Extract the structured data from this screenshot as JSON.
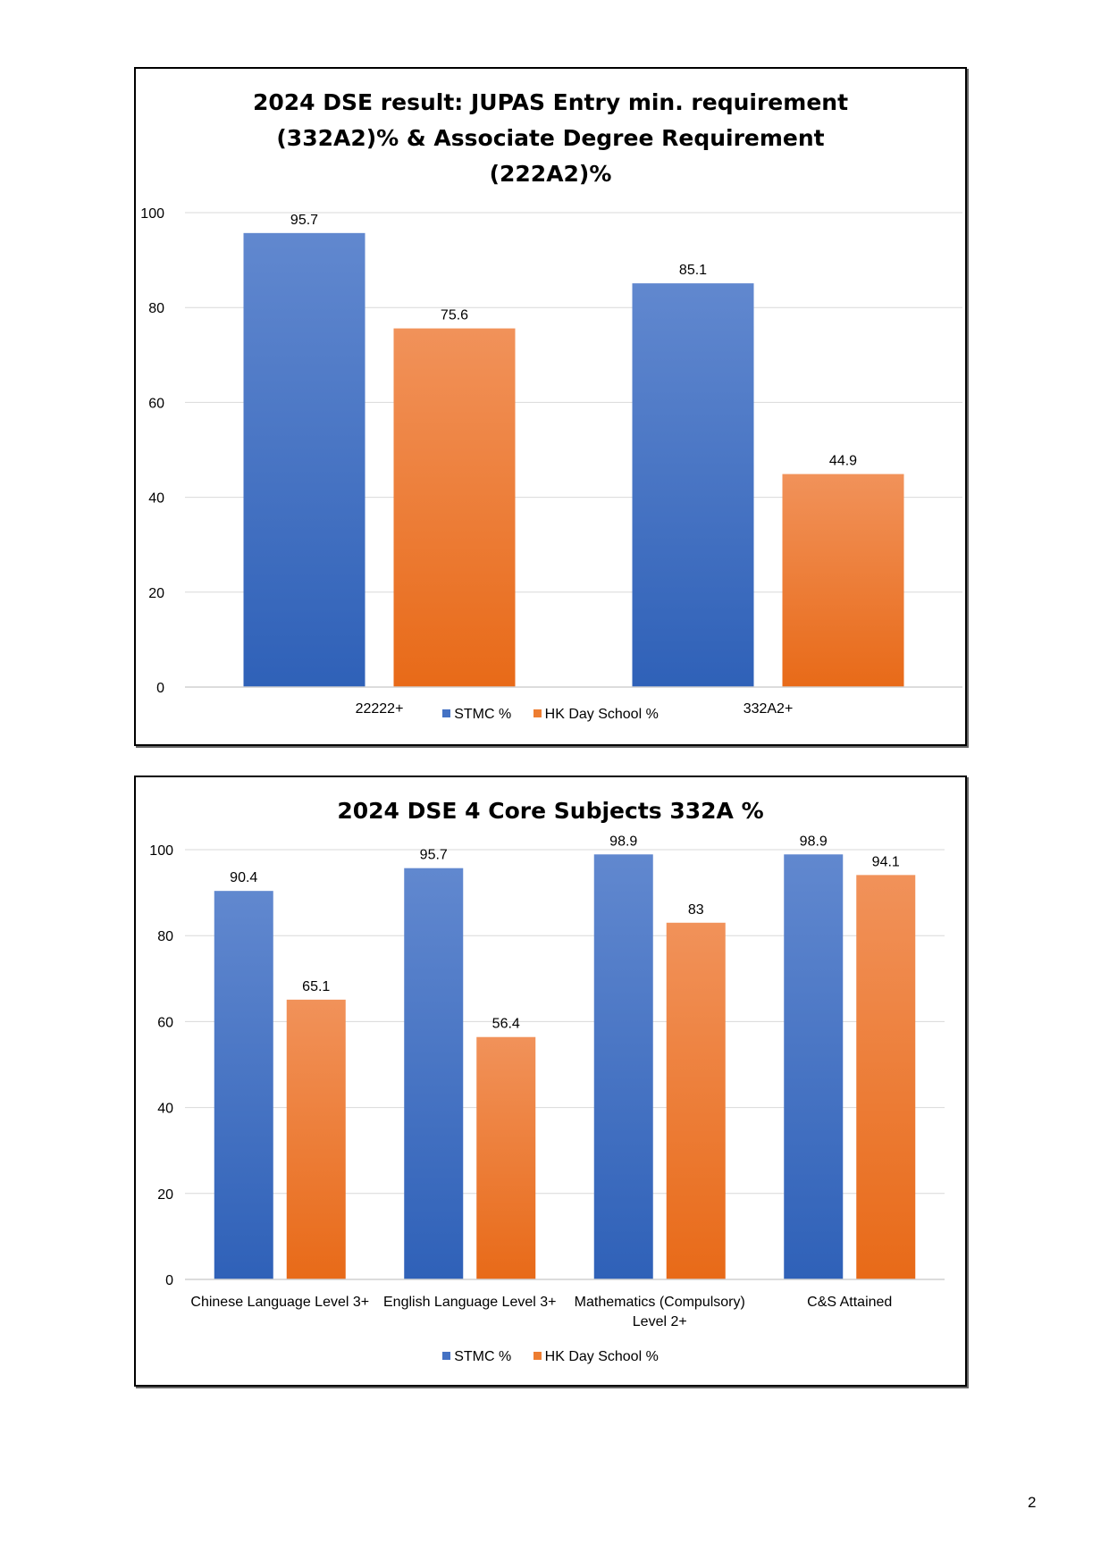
{
  "page": {
    "number": "2"
  },
  "colors": {
    "blue_top": "#6188cf",
    "blue_bottom": "#2f61b8",
    "orange_top": "#f1925a",
    "orange_bottom": "#e86a18",
    "grid": "#d9d9d9",
    "axis": "#d0d0d0"
  },
  "chart_data": [
    {
      "type": "bar",
      "title": "2024 DSE result: JUPAS Entry min. requirement\n(332A2)%  & Associate Degree Requirement\n(222A2)%",
      "categories": [
        "22222+",
        "332A2+"
      ],
      "series": [
        {
          "name": "STMC %",
          "values": [
            95.7,
            85.1
          ],
          "data_labels": [
            "95.7",
            "85.1"
          ]
        },
        {
          "name": "HK Day School %",
          "values": [
            75.6,
            44.9
          ],
          "data_labels": [
            "75.6",
            "44.9"
          ]
        }
      ],
      "ylim": [
        0,
        100
      ],
      "yticks": [
        "0",
        "20",
        "40",
        "60",
        "80",
        "100"
      ],
      "grid": true,
      "legend": "bottom"
    },
    {
      "type": "bar",
      "title": "2024 DSE 4 Core Subjects 332A  %",
      "categories": [
        "Chinese Language Level 3+",
        "English Language Level 3+",
        "Mathematics (Compulsory)\nLevel 2+",
        "C&S Attained"
      ],
      "series": [
        {
          "name": "STMC %",
          "values": [
            90.4,
            95.7,
            98.9,
            98.9
          ],
          "data_labels": [
            "90.4",
            "95.7",
            "98.9",
            "98.9"
          ]
        },
        {
          "name": "HK Day School %",
          "values": [
            65.1,
            56.4,
            83,
            94.1
          ],
          "data_labels": [
            "65.1",
            "56.4",
            "83",
            "94.1"
          ]
        }
      ],
      "ylim": [
        0,
        100
      ],
      "yticks": [
        "0",
        "20",
        "40",
        "60",
        "80",
        "100"
      ],
      "grid": true,
      "legend": "bottom"
    }
  ]
}
